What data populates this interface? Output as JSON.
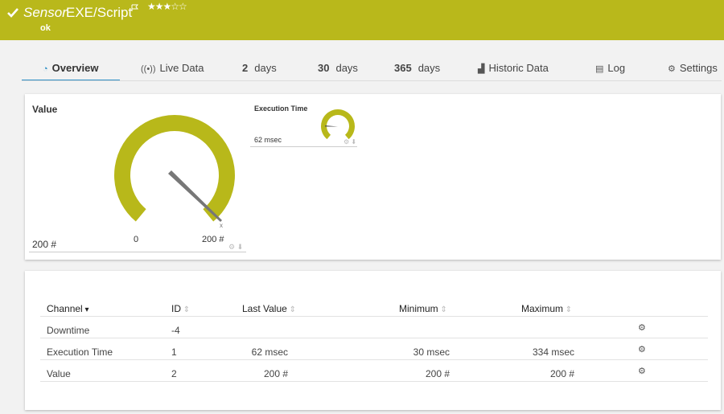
{
  "header": {
    "sensor_label": "Sensor",
    "name": "EXE/Script",
    "status": "ok"
  },
  "tabs": [
    {
      "label": "Overview"
    },
    {
      "label": "Live Data"
    },
    {
      "number": "2",
      "label": "days"
    },
    {
      "number": "30",
      "label": "days"
    },
    {
      "number": "365",
      "label": "days"
    },
    {
      "label": "Historic Data"
    },
    {
      "label": "Log"
    },
    {
      "label": "Settings"
    }
  ],
  "gauges": [
    {
      "title": "Value",
      "reading": "200 #",
      "min_label": "0",
      "max_label": "200 #"
    },
    {
      "title": "Execution Time",
      "reading": "62 msec"
    }
  ],
  "table": {
    "columns": [
      "Channel",
      "ID",
      "Last Value",
      "Minimum",
      "Maximum"
    ],
    "rows": [
      {
        "channel": "Downtime",
        "id": -4
      },
      {
        "channel": "Execution Time",
        "id": 1,
        "last": "62 msec",
        "min": "30 msec",
        "max": "334 msec"
      },
      {
        "channel": "Value",
        "id": 2,
        "last": "200 #",
        "min": "200 #",
        "max": "200 #"
      }
    ]
  }
}
